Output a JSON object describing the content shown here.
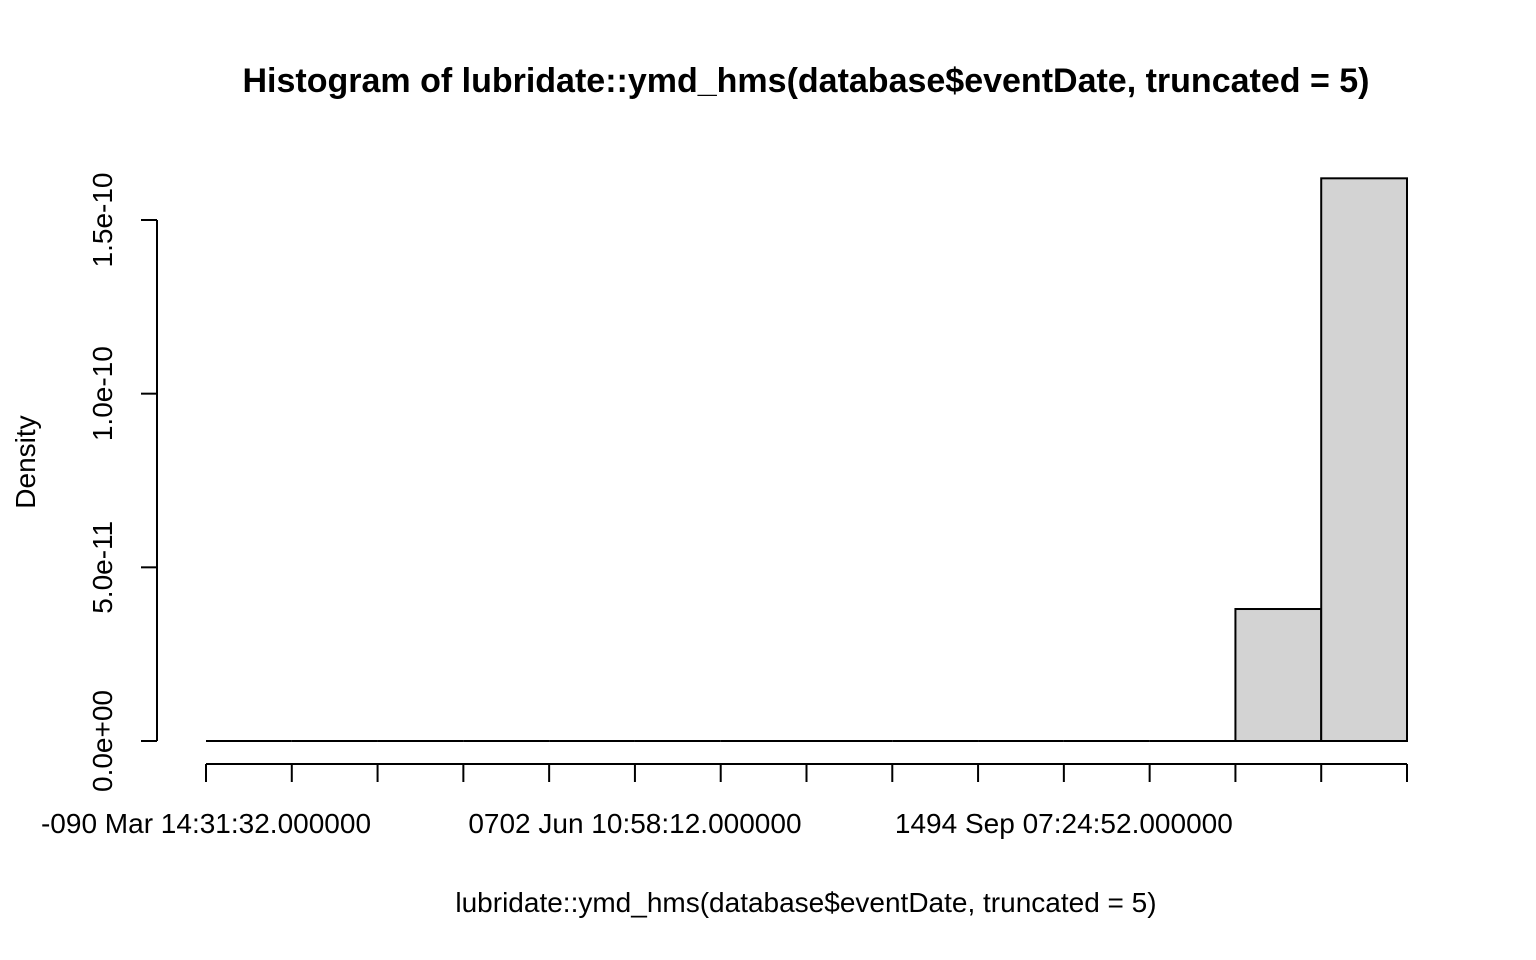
{
  "chart_data": {
    "type": "bar",
    "title": "Histogram of lubridate::ymd_hms(database$eventDate, truncated = 5)",
    "xlabel": "lubridate::ymd_hms(database$eventDate, truncated = 5)",
    "ylabel": "Density",
    "ylim": [
      0,
      1.5e-10
    ],
    "y_ticks": [
      {
        "value": 0,
        "label": "0.0e+00"
      },
      {
        "value": 5e-11,
        "label": "5.0e-11"
      },
      {
        "value": 1e-10,
        "label": "1.0e-10"
      },
      {
        "value": 1.5e-10,
        "label": "1.5e-10"
      }
    ],
    "x_tick_labels": [
      {
        "bin_index": 0,
        "label": "-090 Mar 14:31:32.000000"
      },
      {
        "bin_index": 5,
        "label": "0702 Jun 10:58:12.000000"
      },
      {
        "bin_index": 10,
        "label": "1494 Sep 07:24:52.000000"
      }
    ],
    "bin_count": 14,
    "values": [
      0,
      0,
      0,
      0,
      0,
      0,
      0,
      0,
      0,
      0,
      0,
      0,
      3.8e-11,
      1.62e-10
    ],
    "bar_fill": "#d3d3d3",
    "grid": false
  }
}
